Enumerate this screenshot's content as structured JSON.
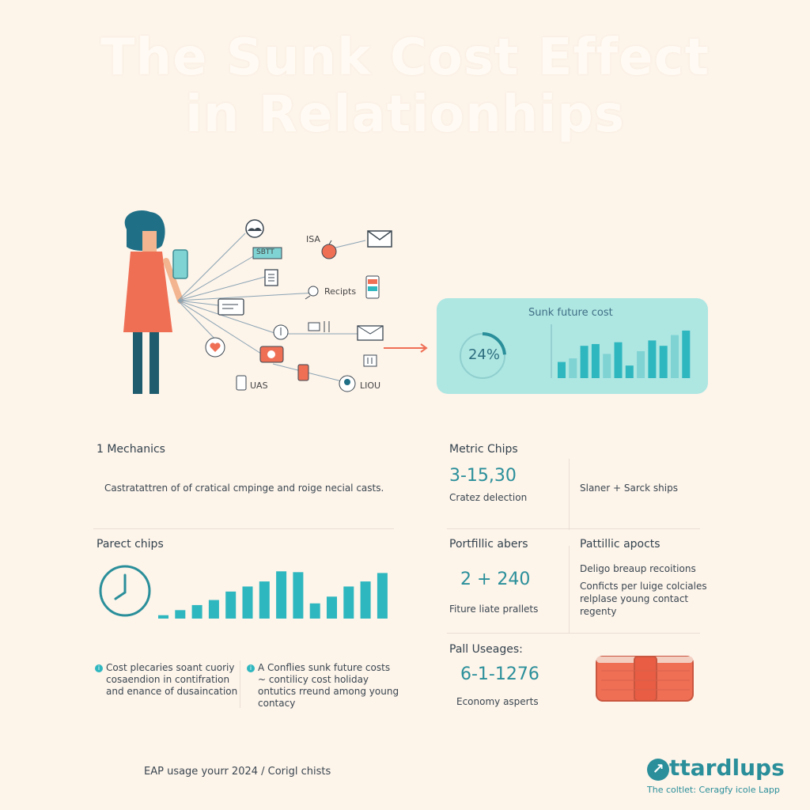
{
  "title": {
    "line1": "The Sunk Cost Effect",
    "line2": "in Relationhips"
  },
  "illustration": {
    "labels": {
      "isa": "ISA",
      "sbtt": "SBTT",
      "recipts": "Recipts",
      "uas": "UAS",
      "lou": "LIOU"
    },
    "icons": [
      "cloud-icon",
      "tag-icon",
      "apple-icon",
      "envelope-icon",
      "document-icon",
      "pin-icon",
      "phone-icon",
      "card-icon",
      "key-icon",
      "mail-icon",
      "heart-icon",
      "camera-icon",
      "cup-icon",
      "tablet-icon",
      "face-icon",
      "bin-icon"
    ]
  },
  "panel": {
    "title": "Sunk future cost",
    "percent": "24%",
    "gauge_value": 0.24
  },
  "panel_chart_data": {
    "type": "bar",
    "values": [
      18,
      22,
      36,
      38,
      27,
      40,
      14,
      30,
      42,
      36,
      48,
      53
    ],
    "ylim": [
      0,
      60
    ]
  },
  "mechanics": {
    "heading": "1 Mechanics",
    "text": "Castratattren of of cratical cmpinge and roige necial casts."
  },
  "metric_chips": {
    "heading": "Metric Chips",
    "number": "3-15,30",
    "caption": "Cratez delection",
    "side": "Slaner + Sarck ships"
  },
  "parect_chips": {
    "heading": "Parect chips"
  },
  "chart_data": {
    "type": "bar",
    "values": [
      4,
      10,
      16,
      22,
      32,
      38,
      44,
      56,
      55,
      18,
      26,
      38,
      44,
      54
    ],
    "ylim": [
      0,
      60
    ]
  },
  "portfillic_abers": {
    "heading": "Portfillic abers",
    "number": "2 + 240",
    "caption": "Fiture liate prallets"
  },
  "pattillic_apocts": {
    "heading": "Pattillic apocts",
    "line1": "Deligo breaup recoitions",
    "line2": "Conficts per luige colciales",
    "line3": "relplase young contact",
    "line4": "regenty"
  },
  "notes": {
    "left": {
      "line1": "Cost plecaries soant cuoriy",
      "line2": "cosaendion in contifration",
      "line3": "and enance of dusaincation"
    },
    "right": {
      "line1": "A  Conflies sunk future costs",
      "line2": "~ contilicy cost holiday",
      "line3": "ontutics rreund among young",
      "line4": "contacy"
    }
  },
  "pall_usages": {
    "heading": "Pall Useages:",
    "number": "6-1-1276",
    "caption": "Economy asperts"
  },
  "footer": "EAP usage yourr 2024 / Corigl chists",
  "logo": {
    "name": "ttardlups",
    "tagline": "The coltlet: Ceragfy icole Lapp"
  },
  "colors": {
    "teal": "#2fb7bf",
    "coral": "#ef6f55",
    "panel": "#aee6e2",
    "background": "#fdf4ea"
  }
}
